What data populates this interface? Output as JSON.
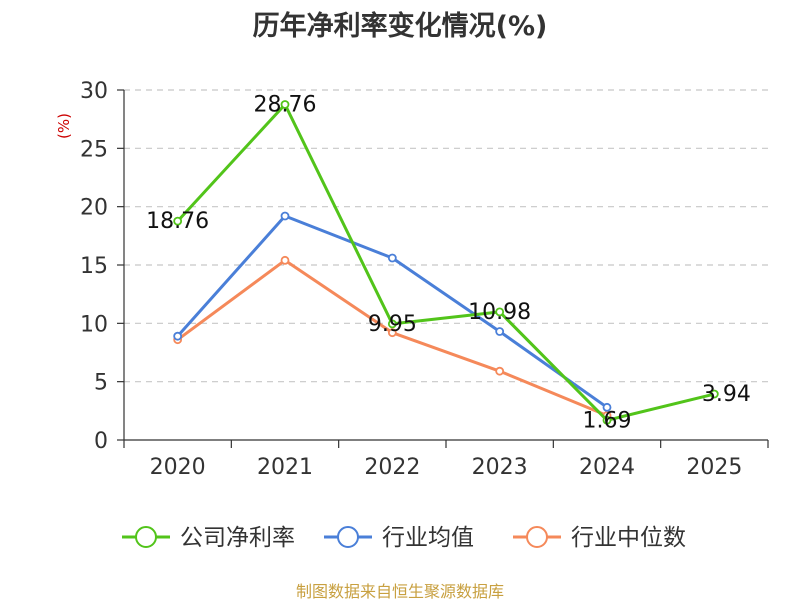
{
  "chart_data": {
    "type": "line",
    "title": "历年净利率变化情况(%)",
    "xlabel": "",
    "ylabel": "(%)",
    "ylim": [
      0,
      30
    ],
    "yticks": [
      0,
      5,
      10,
      15,
      20,
      25,
      30
    ],
    "categories": [
      "2020",
      "2021",
      "2022",
      "2023",
      "2024",
      "2025"
    ],
    "grid": true,
    "legend_position": "bottom",
    "series": [
      {
        "name": "公司净利率",
        "color": "#52c41a",
        "values": [
          18.76,
          28.76,
          9.95,
          10.98,
          1.69,
          3.94
        ],
        "labels": [
          "18.76",
          "28.76",
          "9.95",
          "10.98",
          "1.69",
          "3.94"
        ]
      },
      {
        "name": "行业均值",
        "color": "#4a7fd8",
        "values": [
          8.9,
          19.2,
          15.6,
          9.3,
          2.8,
          null
        ]
      },
      {
        "name": "行业中位数",
        "color": "#f5895a",
        "values": [
          8.6,
          15.4,
          9.2,
          5.9,
          2.1,
          null
        ]
      }
    ]
  },
  "source": "制图数据来自恒生聚源数据库"
}
